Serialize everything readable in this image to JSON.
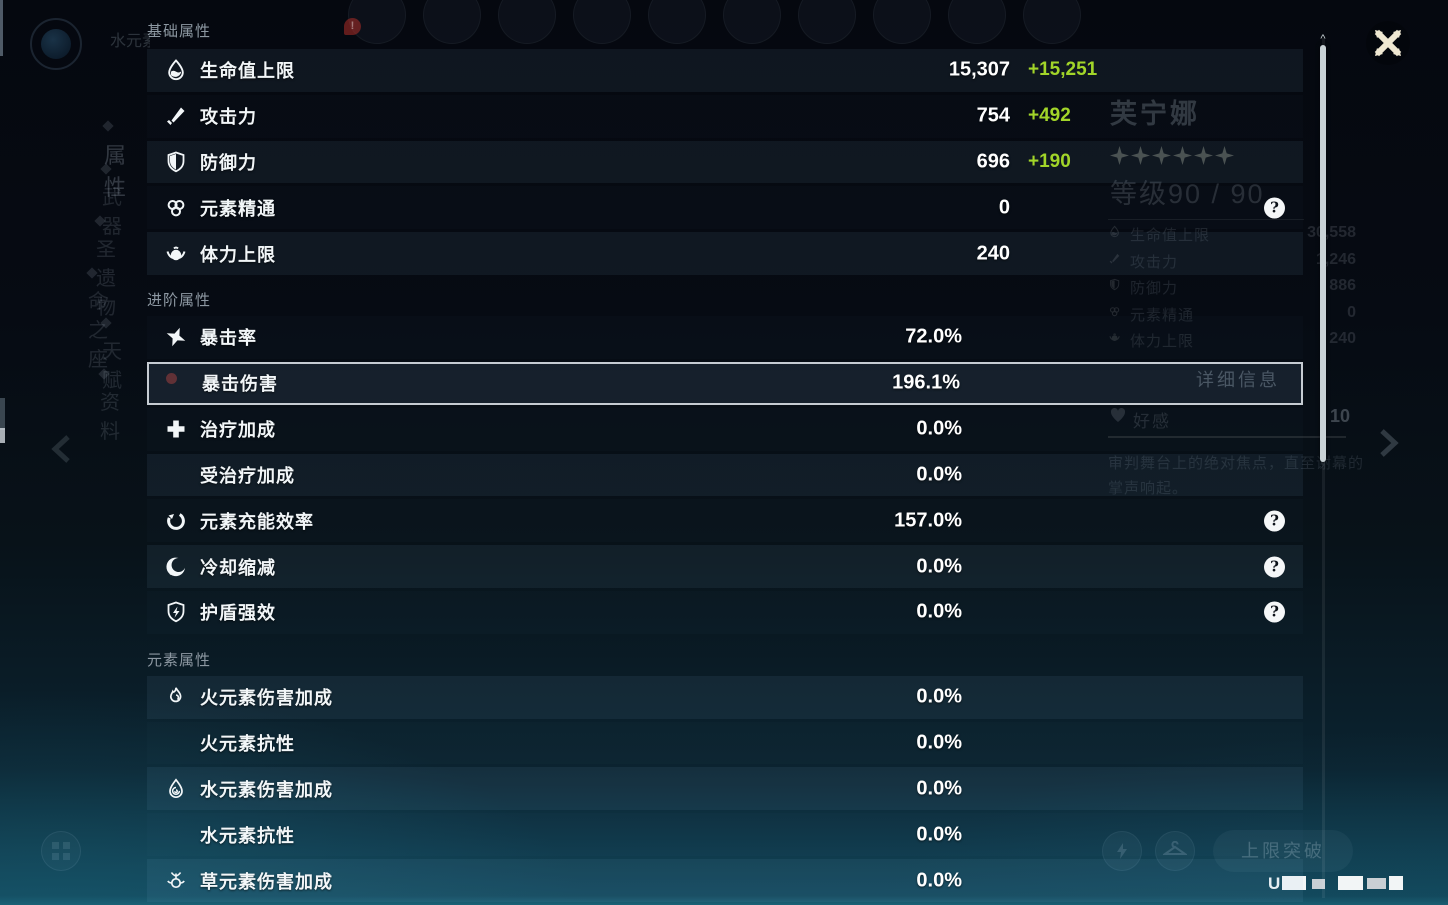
{
  "overlay": {
    "sections": [
      {
        "title": "基础属性",
        "rows": [
          {
            "icon": "hp-icon",
            "label": "生命值上限",
            "value": "15,307",
            "bonus": "+15,251",
            "striped": true
          },
          {
            "icon": "atk-icon",
            "label": "攻击力",
            "value": "754",
            "bonus": "+492"
          },
          {
            "icon": "def-icon",
            "label": "防御力",
            "value": "696",
            "bonus": "+190",
            "striped": true
          },
          {
            "icon": "em-icon",
            "label": "元素精通",
            "value": "0",
            "help": true
          },
          {
            "icon": "stamina-icon",
            "label": "体力上限",
            "value": "240",
            "striped": true
          }
        ]
      },
      {
        "title": "进阶属性",
        "rows": [
          {
            "icon": "crit-rate-icon",
            "label": "暴击率",
            "value": "72.0%",
            "pct": true
          },
          {
            "icon": null,
            "label": "暴击伤害",
            "value": "196.1%",
            "pct": true,
            "selected": true
          },
          {
            "icon": "healing-bonus-icon",
            "label": "治疗加成",
            "value": "0.0%",
            "pct": true
          },
          {
            "icon": null,
            "label": "受治疗加成",
            "value": "0.0%",
            "pct": true,
            "striped": true
          },
          {
            "icon": "energy-recharge-icon",
            "label": "元素充能效率",
            "value": "157.0%",
            "pct": true,
            "help": true
          },
          {
            "icon": "cd-reduction-icon",
            "label": "冷却缩减",
            "value": "0.0%",
            "pct": true,
            "help": true,
            "striped": true
          },
          {
            "icon": "shield-strength-icon",
            "label": "护盾强效",
            "value": "0.0%",
            "pct": true,
            "help": true
          }
        ]
      },
      {
        "title": "元素属性",
        "rows": [
          {
            "icon": "pyro-icon",
            "label": "火元素伤害加成",
            "value": "0.0%",
            "pct": true,
            "striped": true
          },
          {
            "icon": null,
            "label": "火元素抗性",
            "value": "0.0%",
            "pct": true
          },
          {
            "icon": "hydro-icon",
            "label": "水元素伤害加成",
            "value": "0.0%",
            "pct": true,
            "striped": true
          },
          {
            "icon": null,
            "label": "水元素抗性",
            "value": "0.0%",
            "pct": true
          },
          {
            "icon": "dendro-icon",
            "label": "草元素伤害加成",
            "value": "0.0%",
            "pct": true,
            "striped": true
          }
        ]
      }
    ],
    "help_glyph": "?",
    "colors": {
      "bonus_green": "#a2d529",
      "selected_border": "#c6ccd2"
    }
  },
  "background": {
    "element_label": "水元素",
    "avatar_count": 10,
    "nav_items": [
      "属性",
      "武器",
      "圣遗物",
      "命之座",
      "天赋",
      "资料"
    ],
    "character": {
      "name": "芙宁娜",
      "stars": 6,
      "level_text": "等级90 / 90"
    },
    "side_stats": [
      {
        "icon": "hp-icon",
        "label": "生命值上限",
        "value": "30,558"
      },
      {
        "icon": "atk-icon",
        "label": "攻击力",
        "value": "1,246"
      },
      {
        "icon": "def-icon",
        "label": "防御力",
        "value": "886"
      },
      {
        "icon": "em-icon",
        "label": "元素精通",
        "value": "0"
      },
      {
        "icon": "stamina-icon",
        "label": "体力上限",
        "value": "240"
      }
    ],
    "detail_header": "详细信息",
    "friendship_label": "好感",
    "friendship_level": "10",
    "description": "审判舞台上的绝对焦点，直至谢幕的掌声响起。",
    "limit_break_label": "上限突破",
    "uid_prefix": "U"
  }
}
